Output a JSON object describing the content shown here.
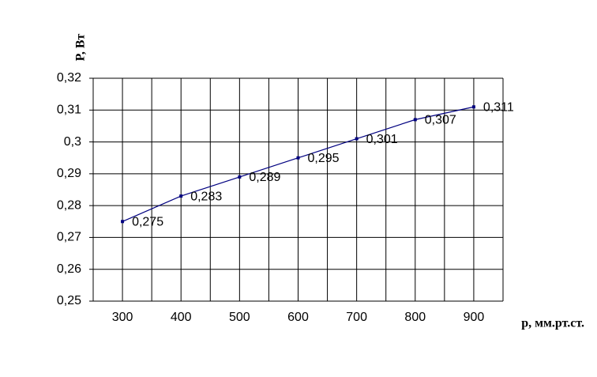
{
  "chart_data": {
    "type": "line",
    "x_label": "p, мм.рт.ст.",
    "y_label": "P, Вт",
    "x": [
      300,
      400,
      500,
      600,
      700,
      800,
      900
    ],
    "series": [
      {
        "color": "#000080",
        "values": [
          0.275,
          0.283,
          0.289,
          0.295,
          0.301,
          0.307,
          0.311
        ],
        "value_labels": [
          "0,275",
          "0,283",
          "0,289",
          "0,295",
          "0,301",
          "0,307",
          "0,311"
        ]
      }
    ],
    "xlim": [
      250,
      950
    ],
    "xticks": [
      300,
      400,
      500,
      600,
      700,
      800,
      900
    ],
    "xgrid": [
      250,
      300,
      350,
      400,
      450,
      500,
      550,
      600,
      650,
      700,
      750,
      800,
      850,
      900,
      950
    ],
    "ylim": [
      0.25,
      0.32
    ],
    "yticks": [
      {
        "value": 0.25,
        "label": "0,25"
      },
      {
        "value": 0.26,
        "label": "0,26"
      },
      {
        "value": 0.27,
        "label": "0,27"
      },
      {
        "value": 0.28,
        "label": "0,28"
      },
      {
        "value": 0.29,
        "label": "0,29"
      },
      {
        "value": 0.3,
        "label": "0,3"
      },
      {
        "value": 0.31,
        "label": "0,31"
      },
      {
        "value": 0.32,
        "label": "0,32"
      }
    ],
    "grid": true
  }
}
